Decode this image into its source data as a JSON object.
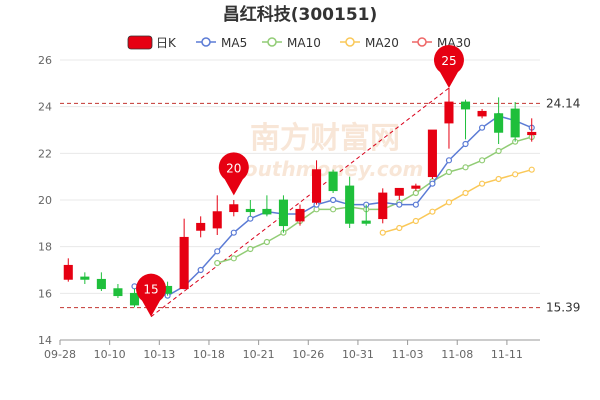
{
  "page": {
    "title": "昌红科技(300151)"
  },
  "legend": [
    {
      "label": "日K",
      "kind": "candle",
      "color": "#e60012"
    },
    {
      "label": "MA5",
      "kind": "line",
      "color": "#5b7bd5"
    },
    {
      "label": "MA10",
      "kind": "line",
      "color": "#91cc75"
    },
    {
      "label": "MA20",
      "kind": "line",
      "color": "#fac858"
    },
    {
      "label": "MA30",
      "kind": "line",
      "color": "#ee6666"
    }
  ],
  "watermark": {
    "text": "南方财富网",
    "sub": "southmoney.com"
  },
  "colors": {
    "up": "#e60012",
    "down": "#1fbf3b",
    "grid": "#e8e8e8",
    "axis": "#999999",
    "refline": "#c23531",
    "trend": "#d9001b",
    "pin": "#e60012"
  },
  "chart_data": {
    "type": "candlestick",
    "title": "昌红科技(300151)",
    "y_ticks": [
      14,
      16,
      18,
      20,
      22,
      24,
      26
    ],
    "ylim": [
      14,
      26
    ],
    "x_tick_labels": [
      {
        "index": 0,
        "label": "09-28"
      },
      {
        "index": 3,
        "label": "10-10"
      },
      {
        "index": 6,
        "label": "10-13"
      },
      {
        "index": 9,
        "label": "10-18"
      },
      {
        "index": 12,
        "label": "10-21"
      },
      {
        "index": 15,
        "label": "10-26"
      },
      {
        "index": 18,
        "label": "10-31"
      },
      {
        "index": 21,
        "label": "11-03"
      },
      {
        "index": 24,
        "label": "11-08"
      },
      {
        "index": 27,
        "label": "11-11"
      }
    ],
    "candles": [
      {
        "o": 16.6,
        "h": 17.5,
        "l": 16.5,
        "c": 17.2
      },
      {
        "o": 16.7,
        "h": 16.9,
        "l": 16.4,
        "c": 16.6
      },
      {
        "o": 16.6,
        "h": 16.9,
        "l": 16.1,
        "c": 16.2
      },
      {
        "o": 16.2,
        "h": 16.4,
        "l": 15.8,
        "c": 15.9
      },
      {
        "o": 16.0,
        "h": 16.2,
        "l": 15.4,
        "c": 15.5
      },
      {
        "o": 15.6,
        "h": 16.0,
        "l": 15.39,
        "c": 15.9
      },
      {
        "o": 16.3,
        "h": 16.5,
        "l": 15.9,
        "c": 16.0
      },
      {
        "o": 16.2,
        "h": 19.2,
        "l": 16.2,
        "c": 18.4
      },
      {
        "o": 18.7,
        "h": 19.3,
        "l": 18.4,
        "c": 19.0
      },
      {
        "o": 18.8,
        "h": 20.2,
        "l": 18.5,
        "c": 19.5
      },
      {
        "o": 19.5,
        "h": 20.0,
        "l": 19.3,
        "c": 19.8
      },
      {
        "o": 19.6,
        "h": 20.0,
        "l": 19.3,
        "c": 19.5
      },
      {
        "o": 19.6,
        "h": 20.2,
        "l": 19.3,
        "c": 19.4
      },
      {
        "o": 20.0,
        "h": 20.2,
        "l": 18.6,
        "c": 18.9
      },
      {
        "o": 19.1,
        "h": 19.8,
        "l": 18.9,
        "c": 19.6
      },
      {
        "o": 19.9,
        "h": 21.7,
        "l": 19.8,
        "c": 21.3
      },
      {
        "o": 21.2,
        "h": 21.3,
        "l": 20.3,
        "c": 20.4
      },
      {
        "o": 20.6,
        "h": 21.0,
        "l": 18.8,
        "c": 19.0
      },
      {
        "o": 19.1,
        "h": 19.8,
        "l": 18.9,
        "c": 19.0
      },
      {
        "o": 19.2,
        "h": 20.5,
        "l": 19.0,
        "c": 20.3
      },
      {
        "o": 20.2,
        "h": 20.5,
        "l": 20.0,
        "c": 20.5
      },
      {
        "o": 20.5,
        "h": 20.7,
        "l": 20.4,
        "c": 20.6
      },
      {
        "o": 21.0,
        "h": 23.0,
        "l": 20.9,
        "c": 23.0
      },
      {
        "o": 23.3,
        "h": 24.8,
        "l": 22.2,
        "c": 24.2
      },
      {
        "o": 24.2,
        "h": 24.3,
        "l": 22.6,
        "c": 23.9
      },
      {
        "o": 23.6,
        "h": 23.9,
        "l": 23.5,
        "c": 23.8
      },
      {
        "o": 23.7,
        "h": 24.4,
        "l": 22.4,
        "c": 22.9
      },
      {
        "o": 23.9,
        "h": 24.2,
        "l": 22.5,
        "c": 22.7
      },
      {
        "o": 22.8,
        "h": 23.5,
        "l": 22.5,
        "c": 22.9
      }
    ],
    "ma5": [
      null,
      null,
      null,
      null,
      16.3,
      16.0,
      15.9,
      16.3,
      17.0,
      17.8,
      18.6,
      19.2,
      19.5,
      19.4,
      19.4,
      19.8,
      20.0,
      19.8,
      19.8,
      19.9,
      19.8,
      19.8,
      20.7,
      21.7,
      22.4,
      23.1,
      23.6,
      23.4,
      23.1
    ],
    "ma10": [
      null,
      null,
      null,
      null,
      null,
      null,
      null,
      null,
      null,
      17.3,
      17.5,
      17.9,
      18.2,
      18.6,
      19.1,
      19.6,
      19.6,
      19.7,
      19.6,
      19.6,
      19.9,
      20.3,
      20.8,
      21.2,
      21.4,
      21.7,
      22.1,
      22.5,
      22.7
    ],
    "ma20": [
      null,
      null,
      null,
      null,
      null,
      null,
      null,
      null,
      null,
      null,
      null,
      null,
      null,
      null,
      null,
      null,
      null,
      null,
      null,
      18.6,
      18.8,
      19.1,
      19.5,
      19.9,
      20.3,
      20.7,
      20.9,
      21.1,
      21.3
    ],
    "ma30": [],
    "ref_lines": [
      {
        "value": 24.14,
        "label": "24.14"
      },
      {
        "value": 15.39,
        "label": "15.39"
      }
    ],
    "pins": [
      {
        "index": 5,
        "value": 15.0,
        "label": "15"
      },
      {
        "index": 10,
        "value": 20.2,
        "label": "20"
      },
      {
        "index": 23,
        "value": 24.8,
        "label": "25"
      }
    ],
    "trendline": {
      "from": {
        "index": 5,
        "value": 15.0
      },
      "to": {
        "index": 23,
        "value": 24.8
      }
    }
  }
}
